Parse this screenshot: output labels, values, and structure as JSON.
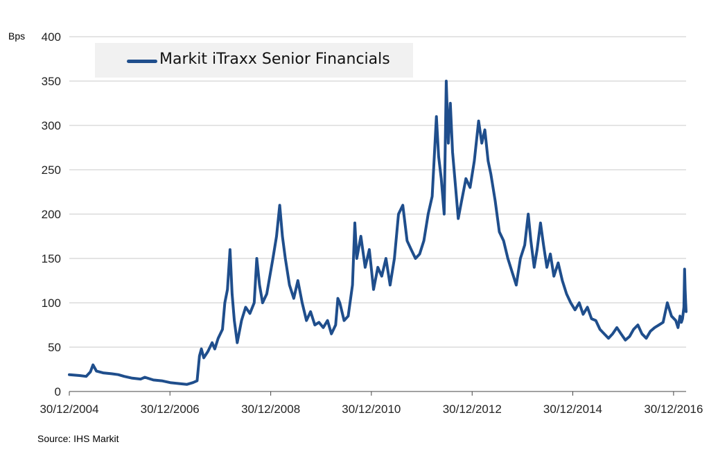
{
  "chart_data": {
    "type": "line",
    "title": "",
    "ylabel": "Bps",
    "xlabel": "",
    "ylim": [
      0,
      400
    ],
    "yticks": [
      "0",
      "50",
      "100",
      "150",
      "200",
      "250",
      "300",
      "350",
      "400"
    ],
    "xtick_labels": [
      "30/12/2004",
      "30/12/2006",
      "30/12/2008",
      "30/12/2010",
      "30/12/2012",
      "30/12/2014",
      "30/12/2016"
    ],
    "xlim": [
      "2004-12-30",
      "2017-03-31"
    ],
    "grid": "horizontal",
    "legend_placement": "top-left",
    "colors": {
      "series": "#1f4e8c",
      "grid": "#c8c8c8"
    },
    "series": [
      {
        "name": "Markit iTraxx Senior Financials",
        "points": [
          [
            "2004-12-30",
            19
          ],
          [
            "2005-03-15",
            18
          ],
          [
            "2005-05-01",
            17
          ],
          [
            "2005-06-01",
            22
          ],
          [
            "2005-06-20",
            30
          ],
          [
            "2005-07-15",
            23
          ],
          [
            "2005-09-01",
            21
          ],
          [
            "2005-11-01",
            20
          ],
          [
            "2005-12-20",
            19
          ],
          [
            "2006-02-01",
            17
          ],
          [
            "2006-04-01",
            15
          ],
          [
            "2006-06-01",
            14
          ],
          [
            "2006-07-01",
            16
          ],
          [
            "2006-09-01",
            13
          ],
          [
            "2006-11-01",
            12
          ],
          [
            "2007-01-01",
            10
          ],
          [
            "2007-03-01",
            9
          ],
          [
            "2007-05-01",
            8
          ],
          [
            "2007-06-15",
            10
          ],
          [
            "2007-07-15",
            12
          ],
          [
            "2007-08-01",
            40
          ],
          [
            "2007-08-15",
            48
          ],
          [
            "2007-09-01",
            38
          ],
          [
            "2007-10-01",
            45
          ],
          [
            "2007-11-01",
            55
          ],
          [
            "2007-11-20",
            48
          ],
          [
            "2007-12-15",
            60
          ],
          [
            "2008-01-15",
            70
          ],
          [
            "2008-02-01",
            100
          ],
          [
            "2008-02-20",
            115
          ],
          [
            "2008-03-10",
            160
          ],
          [
            "2008-03-25",
            110
          ],
          [
            "2008-04-10",
            80
          ],
          [
            "2008-05-01",
            55
          ],
          [
            "2008-06-01",
            80
          ],
          [
            "2008-07-01",
            95
          ],
          [
            "2008-08-01",
            88
          ],
          [
            "2008-09-01",
            100
          ],
          [
            "2008-09-20",
            150
          ],
          [
            "2008-10-10",
            120
          ],
          [
            "2008-11-01",
            100
          ],
          [
            "2008-12-01",
            110
          ],
          [
            "2009-01-15",
            150
          ],
          [
            "2009-02-10",
            175
          ],
          [
            "2009-03-05",
            210
          ],
          [
            "2009-03-25",
            175
          ],
          [
            "2009-04-15",
            150
          ],
          [
            "2009-05-15",
            120
          ],
          [
            "2009-06-15",
            105
          ],
          [
            "2009-07-15",
            125
          ],
          [
            "2009-08-15",
            100
          ],
          [
            "2009-09-15",
            80
          ],
          [
            "2009-10-15",
            90
          ],
          [
            "2009-11-15",
            75
          ],
          [
            "2009-12-15",
            78
          ],
          [
            "2010-01-15",
            72
          ],
          [
            "2010-02-15",
            80
          ],
          [
            "2010-03-15",
            65
          ],
          [
            "2010-04-15",
            75
          ],
          [
            "2010-05-01",
            105
          ],
          [
            "2010-05-15",
            100
          ],
          [
            "2010-06-15",
            80
          ],
          [
            "2010-07-15",
            85
          ],
          [
            "2010-08-15",
            120
          ],
          [
            "2010-09-01",
            190
          ],
          [
            "2010-09-15",
            150
          ],
          [
            "2010-10-15",
            175
          ],
          [
            "2010-11-15",
            140
          ],
          [
            "2010-12-15",
            160
          ],
          [
            "2011-01-15",
            115
          ],
          [
            "2011-02-15",
            140
          ],
          [
            "2011-03-15",
            130
          ],
          [
            "2011-04-15",
            150
          ],
          [
            "2011-05-15",
            120
          ],
          [
            "2011-06-15",
            150
          ],
          [
            "2011-07-15",
            200
          ],
          [
            "2011-08-15",
            210
          ],
          [
            "2011-09-15",
            170
          ],
          [
            "2011-10-15",
            160
          ],
          [
            "2011-11-15",
            150
          ],
          [
            "2011-12-15",
            155
          ],
          [
            "2012-01-15",
            170
          ],
          [
            "2012-02-15",
            200
          ],
          [
            "2012-03-15",
            220
          ],
          [
            "2012-04-15",
            310
          ],
          [
            "2012-05-01",
            265
          ],
          [
            "2012-05-20",
            240
          ],
          [
            "2012-06-10",
            200
          ],
          [
            "2012-06-25",
            350
          ],
          [
            "2012-07-10",
            280
          ],
          [
            "2012-07-25",
            325
          ],
          [
            "2012-08-10",
            270
          ],
          [
            "2012-09-01",
            230
          ],
          [
            "2012-09-20",
            195
          ],
          [
            "2012-10-15",
            215
          ],
          [
            "2012-11-15",
            240
          ],
          [
            "2012-12-15",
            230
          ],
          [
            "2013-01-15",
            260
          ],
          [
            "2013-02-15",
            305
          ],
          [
            "2013-03-10",
            280
          ],
          [
            "2013-04-01",
            295
          ],
          [
            "2013-04-25",
            260
          ],
          [
            "2013-05-15",
            245
          ],
          [
            "2013-06-15",
            215
          ],
          [
            "2013-07-15",
            180
          ],
          [
            "2013-08-15",
            170
          ],
          [
            "2013-09-15",
            150
          ],
          [
            "2013-10-15",
            135
          ],
          [
            "2013-11-15",
            120
          ],
          [
            "2013-12-15",
            150
          ],
          [
            "2014-01-15",
            165
          ],
          [
            "2014-02-10",
            200
          ],
          [
            "2014-03-01",
            170
          ],
          [
            "2014-03-25",
            140
          ],
          [
            "2014-04-15",
            160
          ],
          [
            "2014-05-10",
            190
          ],
          [
            "2014-06-01",
            165
          ],
          [
            "2014-06-25",
            140
          ],
          [
            "2014-07-20",
            155
          ],
          [
            "2014-08-15",
            130
          ],
          [
            "2014-09-15",
            145
          ],
          [
            "2014-10-15",
            125
          ],
          [
            "2014-11-15",
            110
          ],
          [
            "2014-12-15",
            100
          ],
          [
            "2015-01-15",
            92
          ],
          [
            "2015-02-15",
            100
          ],
          [
            "2015-03-15",
            87
          ],
          [
            "2015-04-15",
            95
          ],
          [
            "2015-05-15",
            82
          ],
          [
            "2015-06-15",
            80
          ],
          [
            "2015-07-15",
            70
          ],
          [
            "2015-08-15",
            65
          ],
          [
            "2015-09-15",
            60
          ],
          [
            "2015-10-15",
            65
          ],
          [
            "2015-11-15",
            72
          ],
          [
            "2015-12-15",
            65
          ],
          [
            "2016-01-15",
            58
          ],
          [
            "2016-02-15",
            62
          ],
          [
            "2016-03-15",
            70
          ],
          [
            "2016-04-15",
            75
          ],
          [
            "2016-05-15",
            65
          ],
          [
            "2016-06-15",
            60
          ],
          [
            "2016-07-15",
            68
          ],
          [
            "2016-08-15",
            72
          ],
          [
            "2016-09-15",
            75
          ],
          [
            "2016-10-15",
            78
          ],
          [
            "2016-11-15",
            100
          ],
          [
            "2016-12-15",
            85
          ],
          [
            "2017-01-15",
            80
          ],
          [
            "2017-01-31",
            72
          ],
          [
            "2017-02-15",
            85
          ],
          [
            "2017-02-25",
            78
          ],
          [
            "2017-03-05",
            82
          ],
          [
            "2017-03-15",
            95
          ],
          [
            "2017-03-20",
            138
          ],
          [
            "2017-03-24",
            115
          ],
          [
            "2017-03-28",
            100
          ],
          [
            "2017-03-31",
            90
          ]
        ]
      }
    ]
  },
  "labels": {
    "unit": "Bps",
    "legend": "Markit iTraxx Senior Financials",
    "source": "Source: IHS Markit"
  }
}
